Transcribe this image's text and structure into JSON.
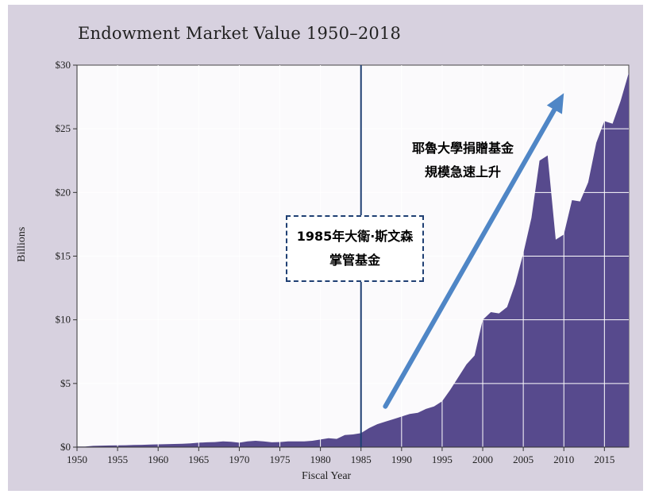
{
  "chart_data": {
    "type": "area",
    "title": "Endowment Market Value 1950–2018",
    "xlabel": "Fiscal Year",
    "ylabel": "Billions",
    "xlim": [
      1950,
      2018
    ],
    "ylim": [
      0,
      30
    ],
    "x_ticks": [
      1950,
      1955,
      1960,
      1965,
      1970,
      1975,
      1980,
      1985,
      1990,
      1995,
      2000,
      2005,
      2010,
      2015
    ],
    "y_ticks": [
      {
        "value": 0,
        "label": "$0"
      },
      {
        "value": 5,
        "label": "$5"
      },
      {
        "value": 10,
        "label": "$10"
      },
      {
        "value": 15,
        "label": "$15"
      },
      {
        "value": 20,
        "label": "$20"
      },
      {
        "value": 25,
        "label": "$25"
      },
      {
        "value": 30,
        "label": "$30"
      }
    ],
    "series": [
      {
        "name": "Endowment Market Value",
        "color": "#574a8d",
        "x": [
          1950,
          1951,
          1952,
          1953,
          1954,
          1955,
          1956,
          1957,
          1958,
          1959,
          1960,
          1961,
          1962,
          1963,
          1964,
          1965,
          1966,
          1967,
          1968,
          1969,
          1970,
          1971,
          1972,
          1973,
          1974,
          1975,
          1976,
          1977,
          1978,
          1979,
          1980,
          1981,
          1982,
          1983,
          1984,
          1985,
          1986,
          1987,
          1988,
          1989,
          1990,
          1991,
          1992,
          1993,
          1994,
          1995,
          1996,
          1997,
          1998,
          1999,
          2000,
          2001,
          2002,
          2003,
          2004,
          2005,
          2006,
          2007,
          2008,
          2009,
          2010,
          2011,
          2012,
          2013,
          2014,
          2015,
          2016,
          2017,
          2018
        ],
        "values": [
          0.05,
          0.05,
          0.1,
          0.12,
          0.13,
          0.14,
          0.15,
          0.17,
          0.18,
          0.2,
          0.22,
          0.24,
          0.25,
          0.27,
          0.3,
          0.35,
          0.38,
          0.4,
          0.45,
          0.42,
          0.35,
          0.45,
          0.5,
          0.45,
          0.38,
          0.4,
          0.45,
          0.45,
          0.45,
          0.5,
          0.6,
          0.7,
          0.65,
          0.95,
          1.0,
          1.1,
          1.5,
          1.8,
          2.0,
          2.2,
          2.4,
          2.6,
          2.7,
          3.0,
          3.2,
          3.6,
          4.5,
          5.5,
          6.5,
          7.2,
          10.0,
          10.6,
          10.5,
          11.0,
          12.8,
          15.2,
          18.0,
          22.5,
          22.9,
          16.3,
          16.7,
          19.4,
          19.3,
          20.8,
          23.9,
          25.6,
          25.4,
          27.2,
          29.4
        ]
      }
    ],
    "vertical_marker": {
      "x": 1985,
      "color": "#1f3f73"
    },
    "annotations": [
      {
        "id": "marker_note",
        "lines": [
          "1985年大衛·斯文森",
          "掌管基金"
        ]
      },
      {
        "id": "growth_note",
        "lines": [
          "耶魯大學捐贈基金",
          "規模急速上升"
        ]
      }
    ],
    "arrow": {
      "from": [
        1988,
        3.2
      ],
      "to": [
        2010,
        27.8
      ],
      "color": "#4f86c6"
    },
    "grid": "vertical and horizontal white lines"
  }
}
